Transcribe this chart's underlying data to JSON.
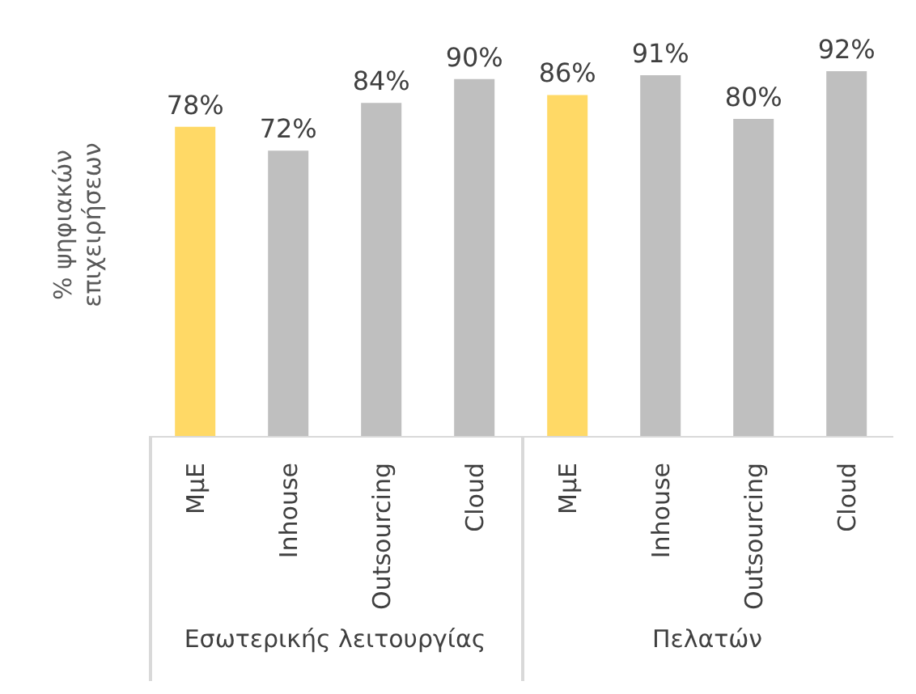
{
  "chart_data": {
    "type": "bar",
    "ylabel": "% ψηφιακών επιχειρήσεων",
    "categories": [
      "ΜμΕ",
      "Inhouse",
      "Outsourcing",
      "Cloud",
      "ΜμΕ",
      "Inhouse",
      "Outsourcing",
      "Cloud"
    ],
    "values": [
      78,
      72,
      84,
      90,
      86,
      91,
      80,
      92
    ],
    "colors": [
      "#ffd966",
      "#bfbfbf",
      "#bfbfbf",
      "#bfbfbf",
      "#ffd966",
      "#bfbfbf",
      "#bfbfbf",
      "#bfbfbf"
    ],
    "value_labels": [
      "78%",
      "72%",
      "84%",
      "90%",
      "86%",
      "91%",
      "80%",
      "92%"
    ],
    "annotations": [
      "Εσωτερικής λειτουργίας",
      "Πελατών"
    ]
  }
}
